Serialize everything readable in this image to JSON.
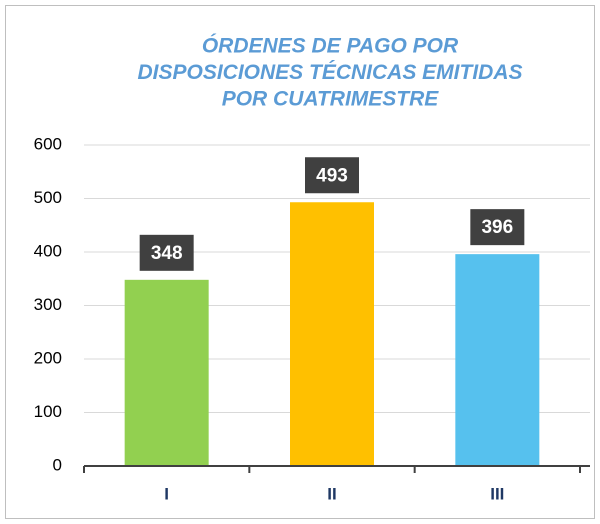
{
  "chart_data": {
    "type": "bar",
    "title": [
      "ÓRDENES DE PAGO POR",
      "DISPOSICIONES TÉCNICAS EMITIDAS",
      "POR CUATRIMESTRE"
    ],
    "categories": [
      "I",
      "II",
      "III"
    ],
    "values": [
      348,
      493,
      396
    ],
    "colors": [
      "#92d050",
      "#ffc000",
      "#56c1ee"
    ],
    "ylim": [
      0,
      600
    ],
    "yticks": [
      0,
      100,
      200,
      300,
      400,
      500,
      600
    ],
    "grid": true
  }
}
